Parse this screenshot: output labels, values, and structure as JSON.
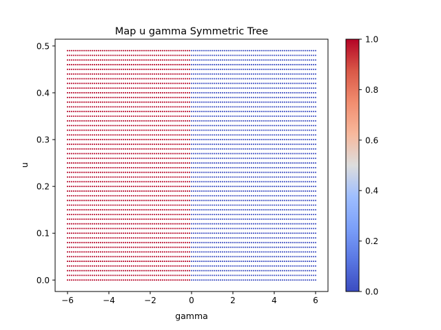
{
  "chart_data": {
    "type": "scatter",
    "title": "Map u gamma Symmetric Tree",
    "xlabel": "gamma",
    "ylabel": "u",
    "xlim": [
      -6.6,
      6.6
    ],
    "ylim": [
      -0.0245,
      0.5145
    ],
    "x_ticks": [
      -6,
      -4,
      -2,
      0,
      2,
      4,
      6
    ],
    "x_tick_labels": [
      "−6",
      "−4",
      "−2",
      "0",
      "2",
      "4",
      "6"
    ],
    "y_ticks": [
      0.0,
      0.1,
      0.2,
      0.3,
      0.4,
      0.5
    ],
    "y_tick_labels": [
      "0.0",
      "0.1",
      "0.2",
      "0.3",
      "0.4",
      "0.5"
    ],
    "grid": false,
    "colormap": "coolwarm",
    "colorbar": {
      "range": [
        0.0,
        1.0
      ],
      "ticks": [
        0.0,
        0.2,
        0.4,
        0.6,
        0.8,
        1.0
      ],
      "tick_labels": [
        "0.0",
        "0.2",
        "0.4",
        "0.6",
        "0.8",
        "1.0"
      ],
      "low_color": "#3b4cc0",
      "high_color": "#b40426"
    },
    "grid_points": {
      "x_start": -6.0,
      "x_stop": 6.0,
      "x_count": 121,
      "y_start": 0.0,
      "y_stop": 0.49,
      "y_count": 50,
      "value_rule": "value is 1 where gamma < 0, else 0"
    }
  }
}
